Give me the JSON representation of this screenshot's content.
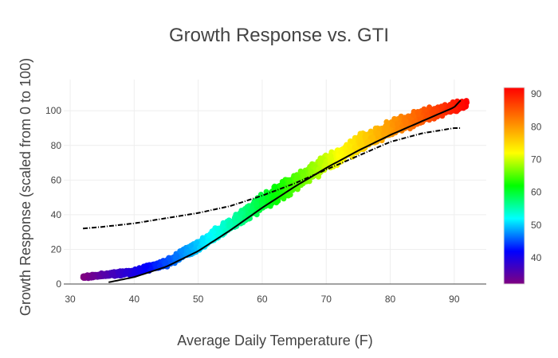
{
  "chart_data": {
    "type": "scatter",
    "title": "Growth Response vs. GTI",
    "xlabel": "Average Daily Temperature (F)",
    "ylabel": "Growth Response (scaled from 0 to 100)",
    "xlim": [
      29,
      95
    ],
    "ylim": [
      0,
      118
    ],
    "x_ticks": [
      30,
      40,
      50,
      60,
      70,
      80,
      90
    ],
    "y_ticks": [
      0,
      20,
      40,
      60,
      80,
      100
    ],
    "grid": true,
    "colorscale": "rainbow",
    "colorbar": {
      "range": [
        32,
        92
      ],
      "ticks": [
        40,
        50,
        60,
        70,
        80,
        90
      ],
      "colors": [
        "#800080",
        "#0000ff",
        "#00ffff",
        "#00ff00",
        "#ffff00",
        "#ff8000",
        "#ff0000"
      ]
    },
    "series": [
      {
        "kind": "points",
        "color_by": "x",
        "x_range": [
          32,
          92
        ],
        "x": [
          32,
          35,
          40,
          45,
          50,
          55,
          60,
          65,
          70,
          75,
          80,
          85,
          90,
          92
        ],
        "y": [
          4,
          5,
          7,
          12,
          22,
          34,
          47,
          58,
          70,
          81,
          90,
          97,
          102,
          104
        ],
        "spread": [
          1,
          1.5,
          2,
          3,
          4,
          5,
          6,
          6,
          6,
          6,
          6,
          5,
          4,
          3
        ]
      },
      {
        "kind": "curve",
        "style": "solid",
        "x": [
          36,
          40,
          45,
          50,
          55,
          60,
          65,
          70,
          75,
          80,
          85,
          90,
          91
        ],
        "y": [
          1,
          4,
          10,
          19,
          31,
          44,
          56,
          67,
          77,
          86,
          94,
          102,
          106
        ]
      },
      {
        "kind": "curve",
        "style": "dashdot",
        "x": [
          32,
          35,
          40,
          45,
          50,
          55,
          60,
          65,
          70,
          75,
          80,
          85,
          90,
          91
        ],
        "y": [
          32,
          33,
          35,
          38,
          41,
          45,
          51,
          58,
          66,
          74,
          82,
          87,
          90,
          90
        ]
      }
    ]
  }
}
